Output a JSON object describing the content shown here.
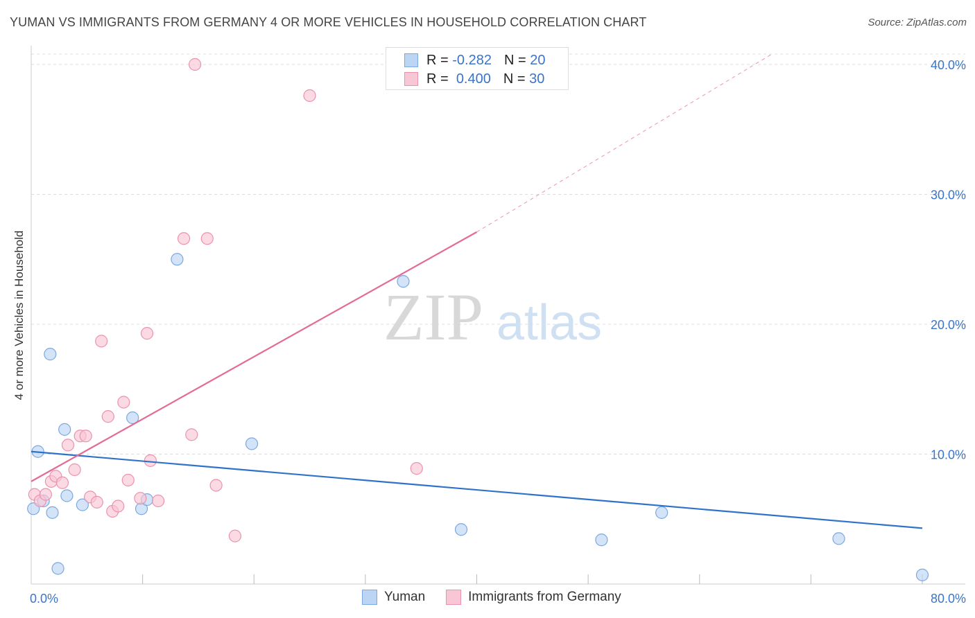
{
  "header": {
    "title": "YUMAN VS IMMIGRANTS FROM GERMANY 4 OR MORE VEHICLES IN HOUSEHOLD CORRELATION CHART",
    "source": "Source: ZipAtlas.com"
  },
  "legend_top": {
    "rows": [
      {
        "r_label": "R =",
        "r_value": "-0.282",
        "n_label": "N =",
        "n_value": "20"
      },
      {
        "r_label": "R =",
        "r_value": "0.400",
        "n_label": "N =",
        "n_value": "30"
      }
    ]
  },
  "watermark": {
    "zip": "ZIP",
    "atlas": "atlas"
  },
  "colors": {
    "yuman_fill": "#bcd5f5",
    "yuman_stroke": "#7aa8e0",
    "yuman_line": "#2f72c9",
    "germany_fill": "#f9c6d6",
    "germany_stroke": "#eb91ae",
    "germany_line": "#e36a93",
    "tick": "#3a74c8",
    "grid": "#dcdcdc"
  },
  "chart_data": {
    "type": "scatter",
    "title": "YUMAN VS IMMIGRANTS FROM GERMANY 4 OR MORE VEHICLES IN HOUSEHOLD CORRELATION CHART",
    "xlabel": "",
    "ylabel": "4 or more Vehicles in Household",
    "xlim": [
      0,
      80
    ],
    "ylim": [
      0,
      40.8
    ],
    "x_tick_labels": [
      "0.0%",
      "80.0%"
    ],
    "y_ticks": [
      10,
      20,
      30,
      40
    ],
    "y_tick_labels": [
      "10.0%",
      "20.0%",
      "30.0%",
      "40.0%"
    ],
    "grid": true,
    "series": [
      {
        "name": "Yuman",
        "r": -0.282,
        "n": 20,
        "points": [
          {
            "x": 0.2,
            "y": 5.8
          },
          {
            "x": 0.6,
            "y": 10.2
          },
          {
            "x": 1.1,
            "y": 6.4
          },
          {
            "x": 1.7,
            "y": 17.7
          },
          {
            "x": 1.9,
            "y": 5.5
          },
          {
            "x": 2.4,
            "y": 1.2
          },
          {
            "x": 3.0,
            "y": 11.9
          },
          {
            "x": 3.2,
            "y": 6.8
          },
          {
            "x": 4.6,
            "y": 6.1
          },
          {
            "x": 9.1,
            "y": 12.8
          },
          {
            "x": 9.9,
            "y": 5.8
          },
          {
            "x": 10.4,
            "y": 6.5
          },
          {
            "x": 13.1,
            "y": 25.0
          },
          {
            "x": 19.8,
            "y": 10.8
          },
          {
            "x": 33.4,
            "y": 23.3
          },
          {
            "x": 38.6,
            "y": 4.2
          },
          {
            "x": 51.2,
            "y": 3.4
          },
          {
            "x": 56.6,
            "y": 5.5
          },
          {
            "x": 72.5,
            "y": 3.5
          },
          {
            "x": 80.0,
            "y": 0.7
          }
        ],
        "trend": {
          "x1": 0,
          "y1": 10.2,
          "x2": 80,
          "y2": 4.3
        }
      },
      {
        "name": "Immigrants from Germany",
        "r": 0.4,
        "n": 30,
        "points": [
          {
            "x": 0.3,
            "y": 6.9
          },
          {
            "x": 0.8,
            "y": 6.4
          },
          {
            "x": 1.3,
            "y": 6.9
          },
          {
            "x": 1.8,
            "y": 7.9
          },
          {
            "x": 2.2,
            "y": 8.3
          },
          {
            "x": 2.8,
            "y": 7.8
          },
          {
            "x": 3.3,
            "y": 10.7
          },
          {
            "x": 3.9,
            "y": 8.8
          },
          {
            "x": 4.4,
            "y": 11.4
          },
          {
            "x": 4.9,
            "y": 11.4
          },
          {
            "x": 5.3,
            "y": 6.7
          },
          {
            "x": 5.9,
            "y": 6.3
          },
          {
            "x": 6.3,
            "y": 18.7
          },
          {
            "x": 6.9,
            "y": 12.9
          },
          {
            "x": 7.3,
            "y": 5.6
          },
          {
            "x": 7.8,
            "y": 6.0
          },
          {
            "x": 8.3,
            "y": 14.0
          },
          {
            "x": 8.7,
            "y": 8.0
          },
          {
            "x": 10.4,
            "y": 19.3
          },
          {
            "x": 10.7,
            "y": 9.5
          },
          {
            "x": 9.8,
            "y": 6.6
          },
          {
            "x": 11.4,
            "y": 6.4
          },
          {
            "x": 13.7,
            "y": 26.6
          },
          {
            "x": 14.4,
            "y": 11.5
          },
          {
            "x": 14.7,
            "y": 40.0
          },
          {
            "x": 15.8,
            "y": 26.6
          },
          {
            "x": 16.6,
            "y": 7.6
          },
          {
            "x": 18.3,
            "y": 3.7
          },
          {
            "x": 25.0,
            "y": 37.6
          },
          {
            "x": 34.6,
            "y": 8.9
          }
        ],
        "trend": {
          "x1": 0,
          "y1": 7.9,
          "x2": 40,
          "y2": 27.1
        },
        "trend_extension": {
          "x1": 40,
          "y1": 27.1,
          "x2": 66.5,
          "y2": 40.8
        }
      }
    ]
  }
}
